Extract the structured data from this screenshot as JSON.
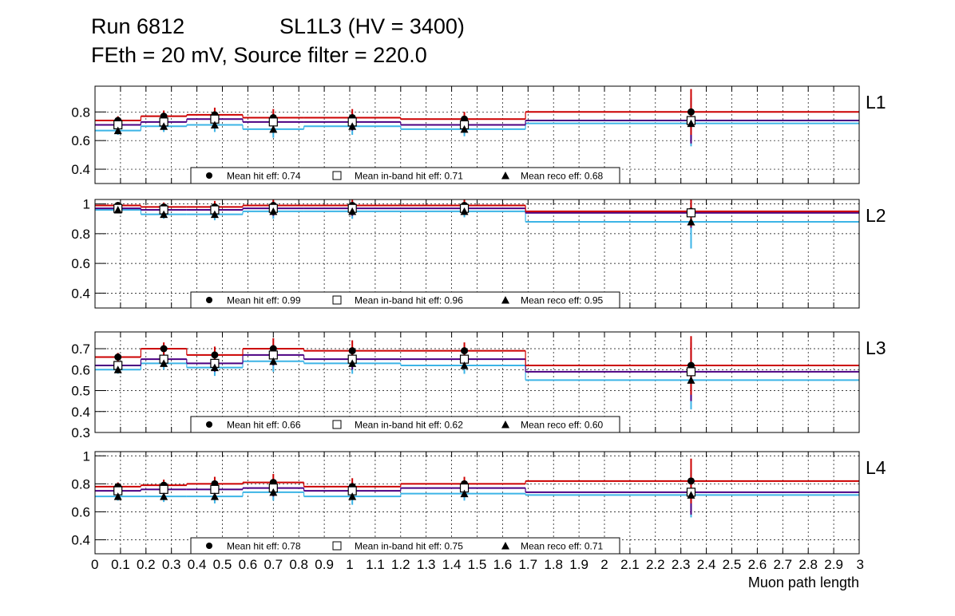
{
  "header": {
    "run": "Run 6812",
    "chamber": "SL1L3 (HV = 3400)",
    "line2": "FEth = 20 mV, Source filter = 220.0"
  },
  "colors": {
    "hit": "#cc0000",
    "inband": "#4b0082",
    "reco": "#3cb4e6",
    "marker": "#000000"
  },
  "chart_data": {
    "type": "scatter",
    "xlabel": "Muon path length",
    "xlim": [
      0,
      3
    ],
    "x_tick_labels": [
      "0",
      "0.1",
      "0.2",
      "0.3",
      "0.4",
      "0.5",
      "0.6",
      "0.7",
      "0.8",
      "0.9",
      "1",
      "1.1",
      "1.2",
      "1.3",
      "1.4",
      "1.5",
      "1.6",
      "1.7",
      "1.8",
      "1.9",
      "2",
      "2.1",
      "2.2",
      "2.3",
      "2.4",
      "2.5",
      "2.6",
      "2.7",
      "2.8",
      "2.9",
      "3"
    ],
    "x_tick_values": [
      0,
      0.1,
      0.2,
      0.3,
      0.4,
      0.5,
      0.6,
      0.7,
      0.8,
      0.9,
      1,
      1.1,
      1.2,
      1.3,
      1.4,
      1.5,
      1.6,
      1.7,
      1.8,
      1.9,
      2,
      2.1,
      2.2,
      2.3,
      2.4,
      2.5,
      2.6,
      2.7,
      2.8,
      2.9,
      3
    ],
    "grid": true,
    "bin_edges": [
      0,
      0.18,
      0.36,
      0.58,
      0.82,
      1.2,
      1.69,
      3.0
    ],
    "x_points": [
      0.09,
      0.27,
      0.47,
      0.7,
      1.01,
      1.45,
      2.34
    ],
    "series_names": [
      "hit",
      "in-band hit",
      "reco"
    ],
    "panels": [
      {
        "label": "L1",
        "ylim": [
          0.3,
          0.98
        ],
        "yticks": [
          0.4,
          0.6,
          0.8
        ],
        "legend": [
          "Mean hit  eff: 0.74",
          "Mean in-band hit eff: 0.71",
          "Mean reco eff: 0.68"
        ],
        "hit": {
          "values": [
            0.74,
            0.77,
            0.78,
            0.76,
            0.76,
            0.75,
            0.8
          ],
          "err": [
            0.03,
            0.04,
            0.05,
            0.06,
            0.06,
            0.05,
            0.16
          ]
        },
        "inband": {
          "values": [
            0.71,
            0.73,
            0.75,
            0.73,
            0.73,
            0.71,
            0.74
          ],
          "err": [
            0.03,
            0.04,
            0.05,
            0.06,
            0.06,
            0.05,
            0.16
          ]
        },
        "reco": {
          "values": [
            0.67,
            0.7,
            0.71,
            0.68,
            0.7,
            0.68,
            0.72
          ],
          "err": [
            0.03,
            0.04,
            0.05,
            0.06,
            0.06,
            0.05,
            0.16
          ]
        }
      },
      {
        "label": "L2",
        "ylim": [
          0.3,
          1.03
        ],
        "yticks": [
          0.4,
          0.6,
          0.8,
          1.0
        ],
        "ytick_labels": [
          "0.4",
          "0.6",
          "0.8",
          "1"
        ],
        "legend": [
          "Mean hit  eff: 0.99",
          "Mean in-band hit eff: 0.96",
          "Mean reco eff: 0.95"
        ],
        "hit": {
          "values": [
            0.99,
            0.98,
            0.98,
            0.99,
            0.99,
            0.99,
            0.95
          ],
          "err": [
            0.02,
            0.03,
            0.04,
            0.05,
            0.05,
            0.04,
            0.1
          ]
        },
        "inband": {
          "values": [
            0.97,
            0.96,
            0.96,
            0.97,
            0.97,
            0.97,
            0.94
          ],
          "err": [
            0.02,
            0.03,
            0.04,
            0.05,
            0.05,
            0.04,
            0.1
          ]
        },
        "reco": {
          "values": [
            0.96,
            0.93,
            0.93,
            0.95,
            0.95,
            0.95,
            0.88
          ],
          "err": [
            0.02,
            0.03,
            0.04,
            0.05,
            0.05,
            0.04,
            0.18
          ]
        }
      },
      {
        "label": "L3",
        "ylim": [
          0.3,
          0.78
        ],
        "yticks": [
          0.3,
          0.4,
          0.5,
          0.6,
          0.7
        ],
        "legend": [
          "Mean hit  eff: 0.66",
          "Mean in-band hit eff: 0.62",
          "Mean reco eff: 0.60"
        ],
        "hit": {
          "values": [
            0.66,
            0.7,
            0.67,
            0.7,
            0.69,
            0.69,
            0.62
          ],
          "err": [
            0.02,
            0.03,
            0.04,
            0.05,
            0.05,
            0.04,
            0.14
          ]
        },
        "inband": {
          "values": [
            0.62,
            0.65,
            0.63,
            0.67,
            0.65,
            0.65,
            0.59
          ],
          "err": [
            0.02,
            0.03,
            0.04,
            0.05,
            0.05,
            0.04,
            0.14
          ]
        },
        "reco": {
          "values": [
            0.6,
            0.63,
            0.61,
            0.64,
            0.63,
            0.62,
            0.55
          ],
          "err": [
            0.02,
            0.03,
            0.04,
            0.05,
            0.05,
            0.04,
            0.14
          ]
        }
      },
      {
        "label": "L4",
        "ylim": [
          0.3,
          1.03
        ],
        "yticks": [
          0.4,
          0.6,
          0.8,
          1.0
        ],
        "ytick_labels": [
          "0.4",
          "0.6",
          "0.8",
          "1"
        ],
        "legend": [
          "Mean hit  eff: 0.78",
          "Mean in-band hit eff: 0.75",
          "Mean reco eff: 0.71"
        ],
        "hit": {
          "values": [
            0.78,
            0.79,
            0.8,
            0.81,
            0.78,
            0.8,
            0.82
          ],
          "err": [
            0.03,
            0.04,
            0.05,
            0.06,
            0.06,
            0.05,
            0.16
          ]
        },
        "inband": {
          "values": [
            0.75,
            0.76,
            0.76,
            0.77,
            0.75,
            0.77,
            0.74
          ],
          "err": [
            0.03,
            0.04,
            0.05,
            0.06,
            0.06,
            0.05,
            0.16
          ]
        },
        "reco": {
          "values": [
            0.71,
            0.71,
            0.71,
            0.74,
            0.71,
            0.73,
            0.72
          ],
          "err": [
            0.03,
            0.04,
            0.05,
            0.06,
            0.06,
            0.05,
            0.16
          ]
        }
      }
    ]
  }
}
